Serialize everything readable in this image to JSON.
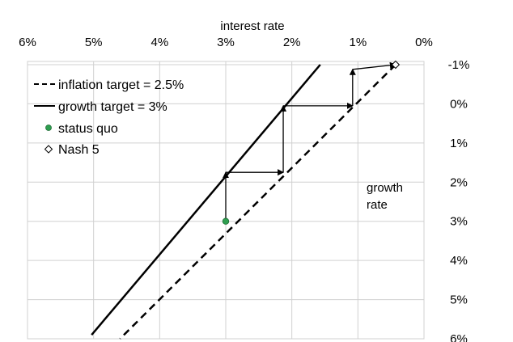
{
  "chart_data": {
    "type": "line",
    "x_axis": {
      "label": "interest rate",
      "position": "top",
      "reversed": true,
      "range": [
        0,
        6
      ],
      "ticks": [
        6,
        5,
        4,
        3,
        2,
        1,
        0
      ],
      "tick_labels": [
        "6%",
        "5%",
        "4%",
        "3%",
        "2%",
        "1%",
        "0%"
      ]
    },
    "y_axis": {
      "label_lines": [
        "growth",
        "rate"
      ],
      "position": "right",
      "reversed": true,
      "range": [
        -1,
        6
      ],
      "ticks": [
        -1,
        0,
        1,
        2,
        3,
        4,
        5,
        6
      ],
      "tick_labels": [
        "-1%",
        "0%",
        "1%",
        "2%",
        "3%",
        "4%",
        "5%",
        "6%"
      ]
    },
    "grid": true,
    "legend": {
      "placement": "top-left",
      "entries": [
        {
          "label": "inflation target = 2.5%",
          "symbol": "dashed-line"
        },
        {
          "label": "growth target = 3%",
          "symbol": "solid-line"
        },
        {
          "label": "status quo",
          "symbol": "green-dot"
        },
        {
          "label": "Nash 5",
          "symbol": "open-diamond"
        }
      ]
    },
    "series": [
      {
        "name": "inflation target = 2.5%",
        "style": "dashed",
        "color": "#000000",
        "points": [
          {
            "x": 0.43,
            "y": -1
          },
          {
            "x": 4.6,
            "y": 6
          }
        ]
      },
      {
        "name": "growth target = 3%",
        "style": "solid",
        "color": "#000000",
        "points": [
          {
            "x": 1.57,
            "y": -1
          },
          {
            "x": 5.03,
            "y": 5.9
          }
        ]
      }
    ],
    "path_arrows": [
      {
        "from": {
          "x": 3,
          "y": 3
        },
        "to": {
          "x": 3,
          "y": 1.75
        }
      },
      {
        "from": {
          "x": 3,
          "y": 1.75
        },
        "to": {
          "x": 2.13,
          "y": 1.75
        }
      },
      {
        "from": {
          "x": 2.13,
          "y": 1.75
        },
        "to": {
          "x": 2.13,
          "y": 0.05
        }
      },
      {
        "from": {
          "x": 2.13,
          "y": 0.05
        },
        "to": {
          "x": 1.08,
          "y": 0.05
        }
      },
      {
        "from": {
          "x": 1.08,
          "y": 0.05
        },
        "to": {
          "x": 1.08,
          "y": -0.88
        }
      },
      {
        "from": {
          "x": 1.08,
          "y": -0.88
        },
        "to": {
          "x": 0.43,
          "y": -1
        }
      }
    ],
    "points": [
      {
        "name": "status quo",
        "x": 3,
        "y": 3,
        "marker": "circle",
        "color": "#2e9e4f"
      },
      {
        "name": "Nash 5",
        "x": 0.43,
        "y": -1,
        "marker": "diamond-open",
        "color": "#000000"
      }
    ]
  }
}
